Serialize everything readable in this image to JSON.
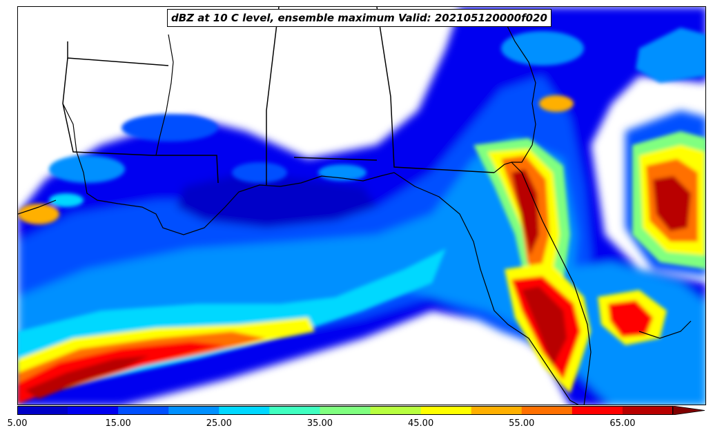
{
  "title": "dBZ at 10 C level, ensemble maximum Valid: 202105120000f020",
  "colorbar": {
    "levels": [
      5,
      10,
      15,
      20,
      25,
      30,
      35,
      40,
      45,
      50,
      55,
      60,
      65,
      70
    ],
    "colors": [
      "#0000c8",
      "#0000f0",
      "#0050ff",
      "#0090ff",
      "#00d8ff",
      "#40ffc0",
      "#80ff80",
      "#b8ff40",
      "#ffff00",
      "#ffb000",
      "#ff7000",
      "#ff0000",
      "#b80000"
    ],
    "extend_color": "#800000",
    "tick_labels": [
      "5.00",
      "15.00",
      "25.00",
      "35.00",
      "45.00",
      "55.00",
      "65.00"
    ]
  },
  "map": {
    "features": [
      "state-borders",
      "coastline"
    ],
    "region": "Gulf of Mexico / Southeast US"
  }
}
